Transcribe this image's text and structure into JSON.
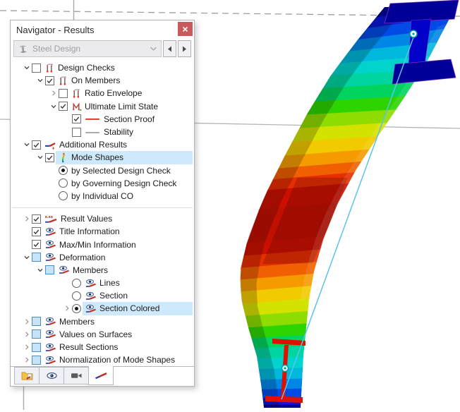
{
  "window": {
    "title": "Navigator - Results"
  },
  "selector": {
    "icon": "steel-design-icon",
    "value": "Steel Design"
  },
  "tree": {
    "rows": [
      {
        "lvl": 0,
        "exp": "open",
        "ctl": "cb",
        "st": "unchecked",
        "icon": "design-checks-icon",
        "label": "Design Checks"
      },
      {
        "lvl": 1,
        "exp": "open",
        "ctl": "cb",
        "st": "checked",
        "icon": "design-checks-icon",
        "label": "On Members"
      },
      {
        "lvl": 2,
        "exp": "closed",
        "ctl": "cb",
        "st": "unchecked",
        "icon": "design-checks-icon",
        "label": "Ratio Envelope"
      },
      {
        "lvl": 2,
        "exp": "open",
        "ctl": "cb",
        "st": "checked",
        "icon": "uls-icon",
        "label": "Ultimate Limit State"
      },
      {
        "lvl": 3,
        "exp": "none",
        "ctl": "cb",
        "st": "checked",
        "icon": "red-line-icon",
        "label": "Section Proof"
      },
      {
        "lvl": 3,
        "exp": "none",
        "ctl": "cb",
        "st": "unchecked",
        "icon": "gray-line-icon",
        "label": "Stability"
      },
      {
        "lvl": 0,
        "exp": "open",
        "ctl": "cb",
        "st": "checked",
        "icon": "additional-results-icon",
        "label": "Additional Results"
      },
      {
        "lvl": 1,
        "exp": "open",
        "ctl": "cb",
        "st": "checked",
        "icon": "mode-shapes-icon",
        "label": "Mode Shapes",
        "hl": true
      },
      {
        "lvl": 2,
        "exp": "none",
        "ctl": "rd",
        "st": "selected",
        "icon": null,
        "label": "by Selected Design Check"
      },
      {
        "lvl": 2,
        "exp": "none",
        "ctl": "rd",
        "st": "unselected",
        "icon": null,
        "label": "by Governing Design Check"
      },
      {
        "lvl": 2,
        "exp": "none",
        "ctl": "rd",
        "st": "unselected",
        "icon": null,
        "label": "by Individual CO"
      },
      {
        "separator": true
      },
      {
        "lvl": 0,
        "exp": "closed",
        "ctl": "cb",
        "st": "checked",
        "icon": "result-values-icon",
        "label": "Result Values"
      },
      {
        "lvl": 0,
        "exp": "none",
        "ctl": "cb",
        "st": "checked",
        "icon": "eye-diagram-icon",
        "label": "Title Information"
      },
      {
        "lvl": 0,
        "exp": "none",
        "ctl": "cb",
        "st": "checked",
        "icon": "eye-diagram-icon",
        "label": "Max/Min Information"
      },
      {
        "lvl": 0,
        "exp": "open",
        "ctl": "cb",
        "st": "filled",
        "icon": "eye-diagram-icon",
        "label": "Deformation"
      },
      {
        "lvl": 1,
        "exp": "open",
        "ctl": "cb",
        "st": "filled",
        "icon": "eye-diagram-icon",
        "label": "Members"
      },
      {
        "lvl": 3,
        "exp": "none",
        "ctl": "rd",
        "st": "unselected",
        "icon": "eye-diagram-icon",
        "label": "Lines"
      },
      {
        "lvl": 3,
        "exp": "none",
        "ctl": "rd",
        "st": "unselected",
        "icon": "eye-diagram-icon",
        "label": "Section"
      },
      {
        "lvl": 3,
        "exp": "closed",
        "ctl": "rd",
        "st": "selected",
        "icon": "eye-diagram-icon",
        "label": "Section Colored",
        "hl": true
      },
      {
        "lvl": 0,
        "exp": "closed",
        "ctl": "cb",
        "st": "filled",
        "icon": "eye-diagram-icon",
        "label": "Members"
      },
      {
        "lvl": 0,
        "exp": "closed",
        "ctl": "cb",
        "st": "filled",
        "icon": "eye-diagram-icon",
        "label": "Values on Surfaces"
      },
      {
        "lvl": 0,
        "exp": "closed",
        "ctl": "cb",
        "st": "filled",
        "icon": "eye-diagram-icon",
        "label": "Result Sections"
      },
      {
        "lvl": 0,
        "exp": "closed",
        "ctl": "cb",
        "st": "filled",
        "icon": "eye-diagram-icon",
        "label": "Normalization of Mode Shapes"
      }
    ]
  },
  "tabs": [
    {
      "icon": "folder-results-icon",
      "active": false
    },
    {
      "icon": "eye-icon",
      "active": false
    },
    {
      "icon": "camera-icon",
      "active": false
    },
    {
      "icon": "results-diagram-icon",
      "active": true
    }
  ],
  "colors": {
    "highlight": "#cfe9fc",
    "close_button": "#c9595d",
    "checkbox_filled_bg": "#c9e2f6",
    "checkbox_filled_border": "#4a90c8",
    "red_accent": "#e03226",
    "gray_line": "#8f8f8f"
  },
  "viz": {
    "bands": [
      {
        "t": 0.0,
        "color": "#00009b"
      },
      {
        "t": 0.03,
        "color": "#0b16d8"
      },
      {
        "t": 0.062,
        "color": "#004ae6"
      },
      {
        "t": 0.095,
        "color": "#0087e6"
      },
      {
        "t": 0.128,
        "color": "#00b8dc"
      },
      {
        "t": 0.162,
        "color": "#00d4cd"
      },
      {
        "t": 0.196,
        "color": "#00d4a0"
      },
      {
        "t": 0.23,
        "color": "#00d45e"
      },
      {
        "t": 0.265,
        "color": "#2ed400"
      },
      {
        "t": 0.3,
        "color": "#8edc00"
      },
      {
        "t": 0.335,
        "color": "#d4e200"
      },
      {
        "t": 0.37,
        "color": "#f2ca00"
      },
      {
        "t": 0.405,
        "color": "#f59b00"
      },
      {
        "t": 0.437,
        "color": "#f06000"
      },
      {
        "t": 0.465,
        "color": "#e62e00"
      },
      {
        "t": 0.492,
        "color": "#cc0f00"
      },
      {
        "t": 0.54,
        "color": "#c11000"
      },
      {
        "t": 0.62,
        "color": "#cc0f00"
      },
      {
        "t": 0.65,
        "color": "#e62e00"
      },
      {
        "t": 0.678,
        "color": "#f06000"
      },
      {
        "t": 0.705,
        "color": "#f59b00"
      },
      {
        "t": 0.732,
        "color": "#f2ca00"
      },
      {
        "t": 0.76,
        "color": "#d4e200"
      },
      {
        "t": 0.788,
        "color": "#8edc00"
      },
      {
        "t": 0.815,
        "color": "#2ed400"
      },
      {
        "t": 0.84,
        "color": "#00d45e"
      },
      {
        "t": 0.864,
        "color": "#00d4a0"
      },
      {
        "t": 0.888,
        "color": "#00d4cd"
      },
      {
        "t": 0.912,
        "color": "#00b8dc"
      },
      {
        "t": 0.936,
        "color": "#0087e6"
      },
      {
        "t": 0.958,
        "color": "#004ae6"
      },
      {
        "t": 0.978,
        "color": "#0b16d8"
      },
      {
        "t": 0.993,
        "color": "#00009b"
      }
    ],
    "cap_color": "#000098",
    "cap_color2": "#0000c8",
    "cap_edge": "#7a30b8",
    "outline_color": "#e01000",
    "guide_line_color": "#59c3ef",
    "marker_color": "#00a0a0",
    "scene_solid": "#b4b4b4",
    "scene_dashed": "#9e9e9e",
    "scene_vertical": "#a8a8ae"
  }
}
